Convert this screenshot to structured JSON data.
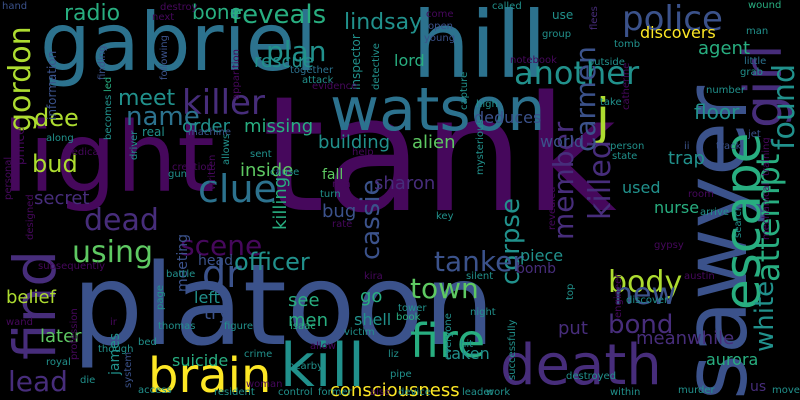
{
  "palette": {
    "deep_purple": "#46085c",
    "indigo": "#472d7b",
    "blue": "#3b528b",
    "steel": "#2c728e",
    "teal": "#21918c",
    "green": "#28ae80",
    "lime": "#5ec962",
    "yellow_green": "#addc30",
    "yellow": "#fde725"
  },
  "words": [
    {
      "text": "tank"
    },
    {
      "text": "platoon"
    },
    {
      "text": "gabriel"
    },
    {
      "text": "hill"
    },
    {
      "text": "light"
    },
    {
      "text": "watson"
    },
    {
      "text": "sawyer"
    },
    {
      "text": "find"
    },
    {
      "text": "death"
    },
    {
      "text": "kill"
    },
    {
      "text": "fire"
    },
    {
      "text": "brain"
    },
    {
      "text": "escape"
    },
    {
      "text": "girl"
    },
    {
      "text": "killer"
    },
    {
      "text": "clue"
    },
    {
      "text": "police"
    },
    {
      "text": "another"
    },
    {
      "text": "j"
    },
    {
      "text": "gordon"
    },
    {
      "text": "dr"
    },
    {
      "text": "attempt"
    },
    {
      "text": "found"
    },
    {
      "text": "white"
    },
    {
      "text": "killed"
    },
    {
      "text": "carmen"
    },
    {
      "text": "member"
    },
    {
      "text": "cassie"
    },
    {
      "text": "corpse"
    },
    {
      "text": "tanker"
    },
    {
      "text": "town"
    },
    {
      "text": "scene"
    },
    {
      "text": "body"
    },
    {
      "text": "using"
    },
    {
      "text": "officer"
    },
    {
      "text": "dead"
    },
    {
      "text": "name"
    },
    {
      "text": "plan"
    },
    {
      "text": "reveals"
    },
    {
      "text": "lindsay"
    },
    {
      "text": "meet"
    },
    {
      "text": "bud"
    },
    {
      "text": "dee"
    },
    {
      "text": "new"
    },
    {
      "text": "bond"
    },
    {
      "text": "lead"
    },
    {
      "text": "consciousness"
    },
    {
      "text": "meanwhile"
    },
    {
      "text": "aurora"
    },
    {
      "text": "radio"
    },
    {
      "text": "bone"
    },
    {
      "text": "agent"
    },
    {
      "text": "floor"
    },
    {
      "text": "discovers"
    },
    {
      "text": "rescue"
    },
    {
      "text": "lord"
    },
    {
      "text": "order"
    },
    {
      "text": "missing"
    },
    {
      "text": "building"
    },
    {
      "text": "deduces"
    },
    {
      "text": "world"
    },
    {
      "text": "alien"
    },
    {
      "text": "sharon"
    },
    {
      "text": "secret"
    },
    {
      "text": "inside"
    },
    {
      "text": "killing"
    },
    {
      "text": "fall"
    },
    {
      "text": "bug"
    },
    {
      "text": "trap"
    },
    {
      "text": "nurse"
    },
    {
      "text": "used"
    },
    {
      "text": "piece"
    },
    {
      "text": "bomb"
    },
    {
      "text": "shell"
    },
    {
      "text": "see"
    },
    {
      "text": "go"
    },
    {
      "text": "men"
    },
    {
      "text": "try"
    },
    {
      "text": "left"
    },
    {
      "text": "head"
    },
    {
      "text": "suicide"
    },
    {
      "text": "meeting"
    },
    {
      "text": "later"
    },
    {
      "text": "belief"
    },
    {
      "text": "james"
    },
    {
      "text": "put"
    },
    {
      "text": "taken"
    },
    {
      "text": "us"
    },
    {
      "text": "information"
    },
    {
      "text": "hand"
    },
    {
      "text": "destroy"
    },
    {
      "text": "next"
    },
    {
      "text": "called"
    },
    {
      "text": "come"
    },
    {
      "text": "use"
    },
    {
      "text": "flees"
    },
    {
      "text": "wound"
    },
    {
      "text": "man"
    },
    {
      "text": "group"
    },
    {
      "text": "tomb"
    },
    {
      "text": "little"
    },
    {
      "text": "grab"
    },
    {
      "text": "inspector"
    },
    {
      "text": "detective"
    },
    {
      "text": "open"
    },
    {
      "text": "young"
    },
    {
      "text": "notebook"
    },
    {
      "text": "outside"
    },
    {
      "text": "capture"
    },
    {
      "text": "together"
    },
    {
      "text": "attack"
    },
    {
      "text": "evidence"
    },
    {
      "text": "apparition"
    },
    {
      "text": "finding"
    },
    {
      "text": "following"
    },
    {
      "text": "led"
    },
    {
      "text": "high"
    },
    {
      "text": "mysterious"
    },
    {
      "text": "catherine"
    },
    {
      "text": "number"
    },
    {
      "text": "take"
    },
    {
      "text": "jet"
    },
    {
      "text": "track"
    },
    {
      "text": "training"
    },
    {
      "text": "person"
    },
    {
      "text": "state"
    },
    {
      "text": "ii"
    },
    {
      "text": "mechanical"
    },
    {
      "text": "search"
    },
    {
      "text": "arrive"
    },
    {
      "text": "room"
    },
    {
      "text": "prince"
    },
    {
      "text": "personal"
    },
    {
      "text": "along"
    },
    {
      "text": "medical"
    },
    {
      "text": "real"
    },
    {
      "text": "machine"
    },
    {
      "text": "allows"
    },
    {
      "text": "written"
    },
    {
      "text": "creation"
    },
    {
      "text": "sent"
    },
    {
      "text": "cause"
    },
    {
      "text": "mia"
    },
    {
      "text": "turn"
    },
    {
      "text": "help"
    },
    {
      "text": "key"
    },
    {
      "text": "rate"
    },
    {
      "text": "revealed"
    },
    {
      "text": "gypsy"
    },
    {
      "text": "becomes"
    },
    {
      "text": "driver"
    },
    {
      "text": "gun"
    },
    {
      "text": "battle"
    },
    {
      "text": "designed"
    },
    {
      "text": "subsequently"
    },
    {
      "text": "kira"
    },
    {
      "text": "silent"
    },
    {
      "text": "austin"
    },
    {
      "text": "discover"
    },
    {
      "text": "engineer"
    },
    {
      "text": "tower"
    },
    {
      "text": "night"
    },
    {
      "text": "book"
    },
    {
      "text": "everyone"
    },
    {
      "text": "victim"
    },
    {
      "text": "isaac"
    },
    {
      "text": "figure"
    },
    {
      "text": "page"
    },
    {
      "text": "thomas"
    },
    {
      "text": "profession"
    },
    {
      "text": "though"
    },
    {
      "text": "bed"
    },
    {
      "text": "wand"
    },
    {
      "text": "royal"
    },
    {
      "text": "die"
    },
    {
      "text": "system"
    },
    {
      "text": "access"
    },
    {
      "text": "resident"
    },
    {
      "text": "woman"
    },
    {
      "text": "control"
    },
    {
      "text": "former"
    },
    {
      "text": "also"
    },
    {
      "text": "device"
    },
    {
      "text": "leader"
    },
    {
      "text": "work"
    },
    {
      "text": "within"
    },
    {
      "text": "murder"
    },
    {
      "text": "move"
    },
    {
      "text": "crime"
    },
    {
      "text": "nearby"
    },
    {
      "text": "liz"
    },
    {
      "text": "pipe"
    },
    {
      "text": "destroyed"
    },
    {
      "text": "successfully"
    },
    {
      "text": "top"
    },
    {
      "text": "ir"
    },
    {
      "text": "allow"
    },
    {
      "text": "hit"
    }
  ]
}
